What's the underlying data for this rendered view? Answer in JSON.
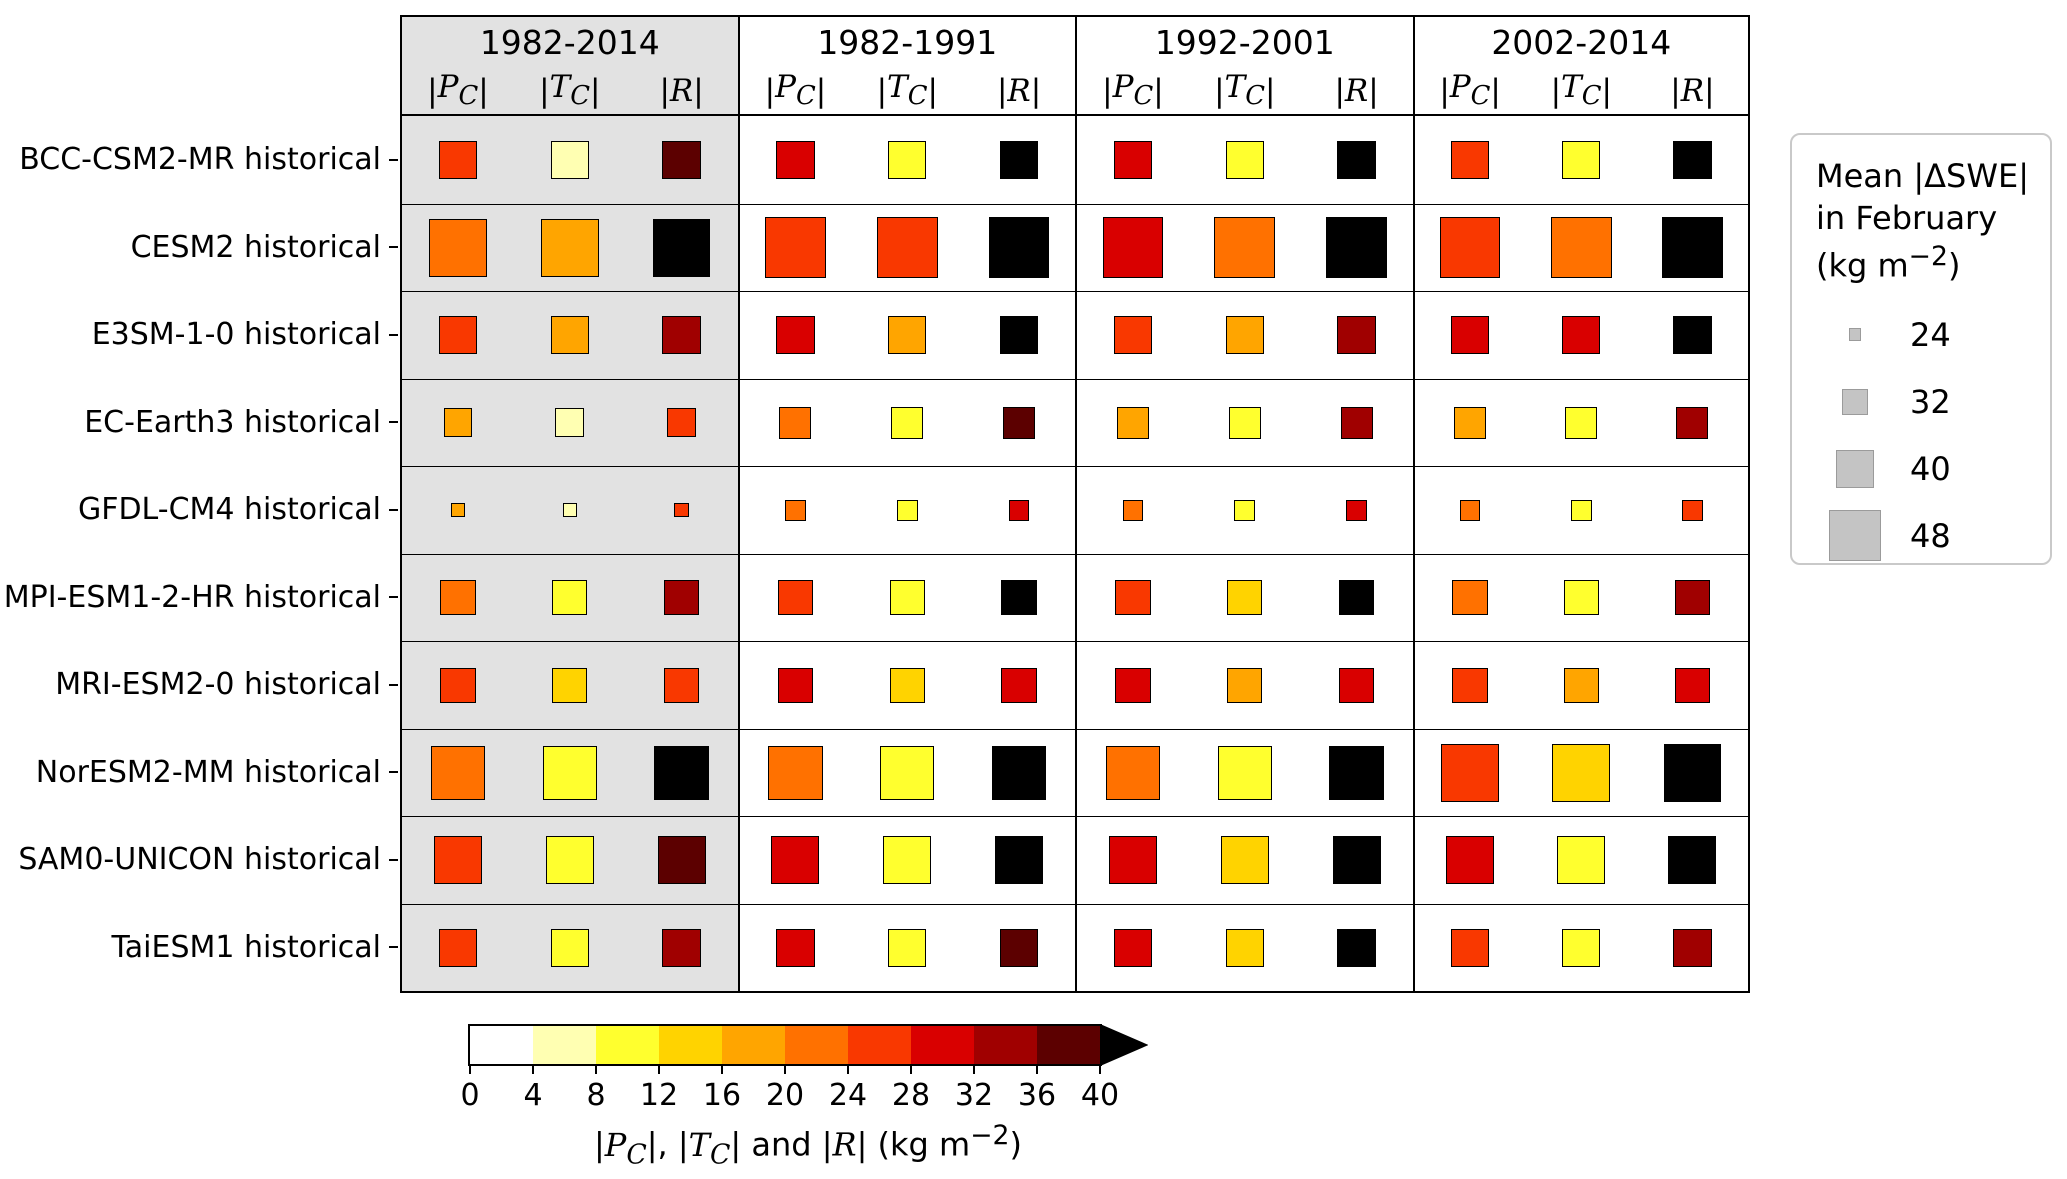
{
  "chart_data": {
    "type": "heatmap",
    "periods": [
      "1982-2014",
      "1982-1991",
      "1992-2001",
      "2002-2014"
    ],
    "shaded_period": "1982-2014",
    "variables": [
      "|P_C|",
      "|T_C|",
      "|R|"
    ],
    "models": [
      {
        "name": "BCC-CSM2-MR historical",
        "swe": [
          40,
          40,
          40,
          40
        ],
        "values": [
          [
            26,
            6,
            38
          ],
          [
            30,
            10,
            42
          ],
          [
            30,
            10,
            42
          ],
          [
            26,
            10,
            42
          ]
        ]
      },
      {
        "name": "CESM2 historical",
        "swe": [
          52,
          54,
          54,
          54
        ],
        "values": [
          [
            22,
            18,
            42
          ],
          [
            26,
            26,
            42
          ],
          [
            30,
            22,
            42
          ],
          [
            26,
            22,
            42
          ]
        ]
      },
      {
        "name": "E3SM-1-0 historical",
        "swe": [
          40,
          40,
          40,
          40
        ],
        "values": [
          [
            26,
            18,
            34
          ],
          [
            30,
            18,
            42
          ],
          [
            26,
            18,
            34
          ],
          [
            30,
            30,
            42
          ]
        ]
      },
      {
        "name": "EC-Earth3 historical",
        "swe": [
          34,
          36,
          36,
          36
        ],
        "values": [
          [
            18,
            6,
            26
          ],
          [
            22,
            10,
            38
          ],
          [
            18,
            10,
            34
          ],
          [
            18,
            10,
            34
          ]
        ]
      },
      {
        "name": "GFDL-CM4 historical",
        "swe": [
          25,
          29,
          29,
          29
        ],
        "values": [
          [
            18,
            6,
            26
          ],
          [
            22,
            10,
            30
          ],
          [
            22,
            10,
            30
          ],
          [
            22,
            10,
            26
          ]
        ]
      },
      {
        "name": "MPI-ESM1-2-HR historical",
        "swe": [
          38,
          38,
          38,
          38
        ],
        "values": [
          [
            22,
            10,
            34
          ],
          [
            26,
            10,
            42
          ],
          [
            26,
            14,
            42
          ],
          [
            22,
            10,
            34
          ]
        ]
      },
      {
        "name": "MRI-ESM2-0 historical",
        "swe": [
          38,
          38,
          38,
          38
        ],
        "values": [
          [
            26,
            14,
            26
          ],
          [
            30,
            14,
            30
          ],
          [
            30,
            18,
            30
          ],
          [
            26,
            18,
            30
          ]
        ]
      },
      {
        "name": "NorESM2-MM historical",
        "swe": [
          50,
          50,
          50,
          52
        ],
        "values": [
          [
            22,
            10,
            42
          ],
          [
            22,
            10,
            42
          ],
          [
            22,
            10,
            42
          ],
          [
            26,
            14,
            42
          ]
        ]
      },
      {
        "name": "SAM0-UNICON historical",
        "swe": [
          46,
          46,
          46,
          46
        ],
        "values": [
          [
            26,
            10,
            38
          ],
          [
            30,
            10,
            42
          ],
          [
            30,
            14,
            42
          ],
          [
            30,
            10,
            42
          ]
        ]
      },
      {
        "name": "TaiESM1 historical",
        "swe": [
          40,
          40,
          40,
          40
        ],
        "values": [
          [
            26,
            10,
            34
          ],
          [
            30,
            10,
            38
          ],
          [
            30,
            14,
            42
          ],
          [
            26,
            10,
            34
          ]
        ]
      }
    ],
    "size_legend": {
      "title_lines": [
        "Mean |ΔSWE|",
        "in February",
        "(kg m^-2)"
      ],
      "values": [
        24,
        32,
        40,
        48
      ]
    },
    "color_bins": {
      "label": "|P_C|, |T_C| and |R| (kg m^-2)",
      "min": 0,
      "max": 40,
      "step": 4,
      "ticks": [
        0,
        4,
        8,
        12,
        16,
        20,
        24,
        28,
        32,
        36,
        40
      ],
      "colors": [
        "#ffffff",
        "#ffffb2",
        "#ffff2e",
        "#ffd300",
        "#ffa500",
        "#ff7100",
        "#f93800",
        "#d90000",
        "#a00000",
        "#5c0000",
        "#000000"
      ],
      "extend": "max"
    }
  },
  "styles": {
    "shaded_bg": "#e2e2e2",
    "legend_square_fill": "#c4c4c4",
    "legend_square_border": "#9b9b9b",
    "legend_box_border": "#c9c9c9"
  }
}
